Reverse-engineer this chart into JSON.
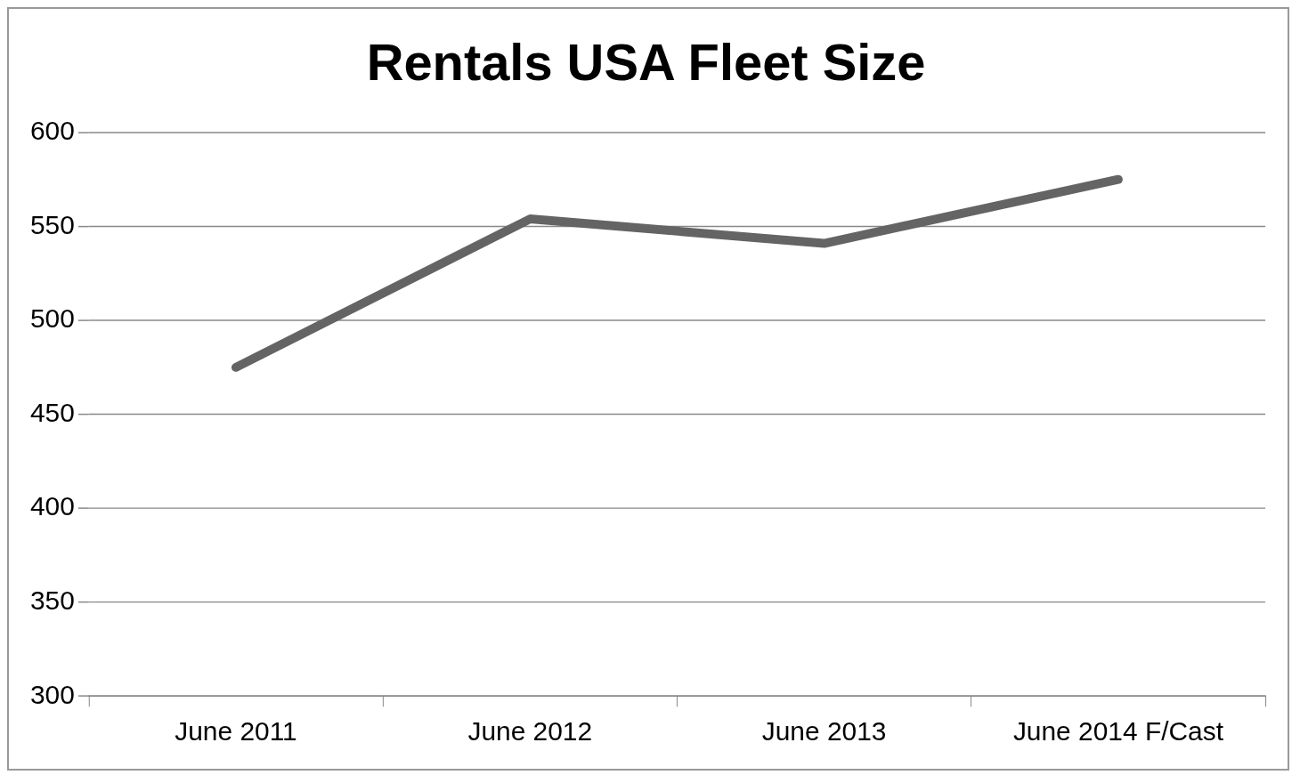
{
  "chart_data": {
    "type": "line",
    "title": "Rentals USA Fleet Size",
    "categories": [
      "June 2011",
      "June 2012",
      "June 2013",
      "June 2014 F/Cast"
    ],
    "series": [
      {
        "color": "#646464",
        "values": [
          475,
          554,
          541,
          575
        ]
      }
    ],
    "ylim": [
      300,
      600
    ],
    "yticks": [
      300,
      350,
      400,
      450,
      500,
      550,
      600
    ],
    "grid": "y",
    "legend": false,
    "marker": "none",
    "line_style": "solid"
  }
}
